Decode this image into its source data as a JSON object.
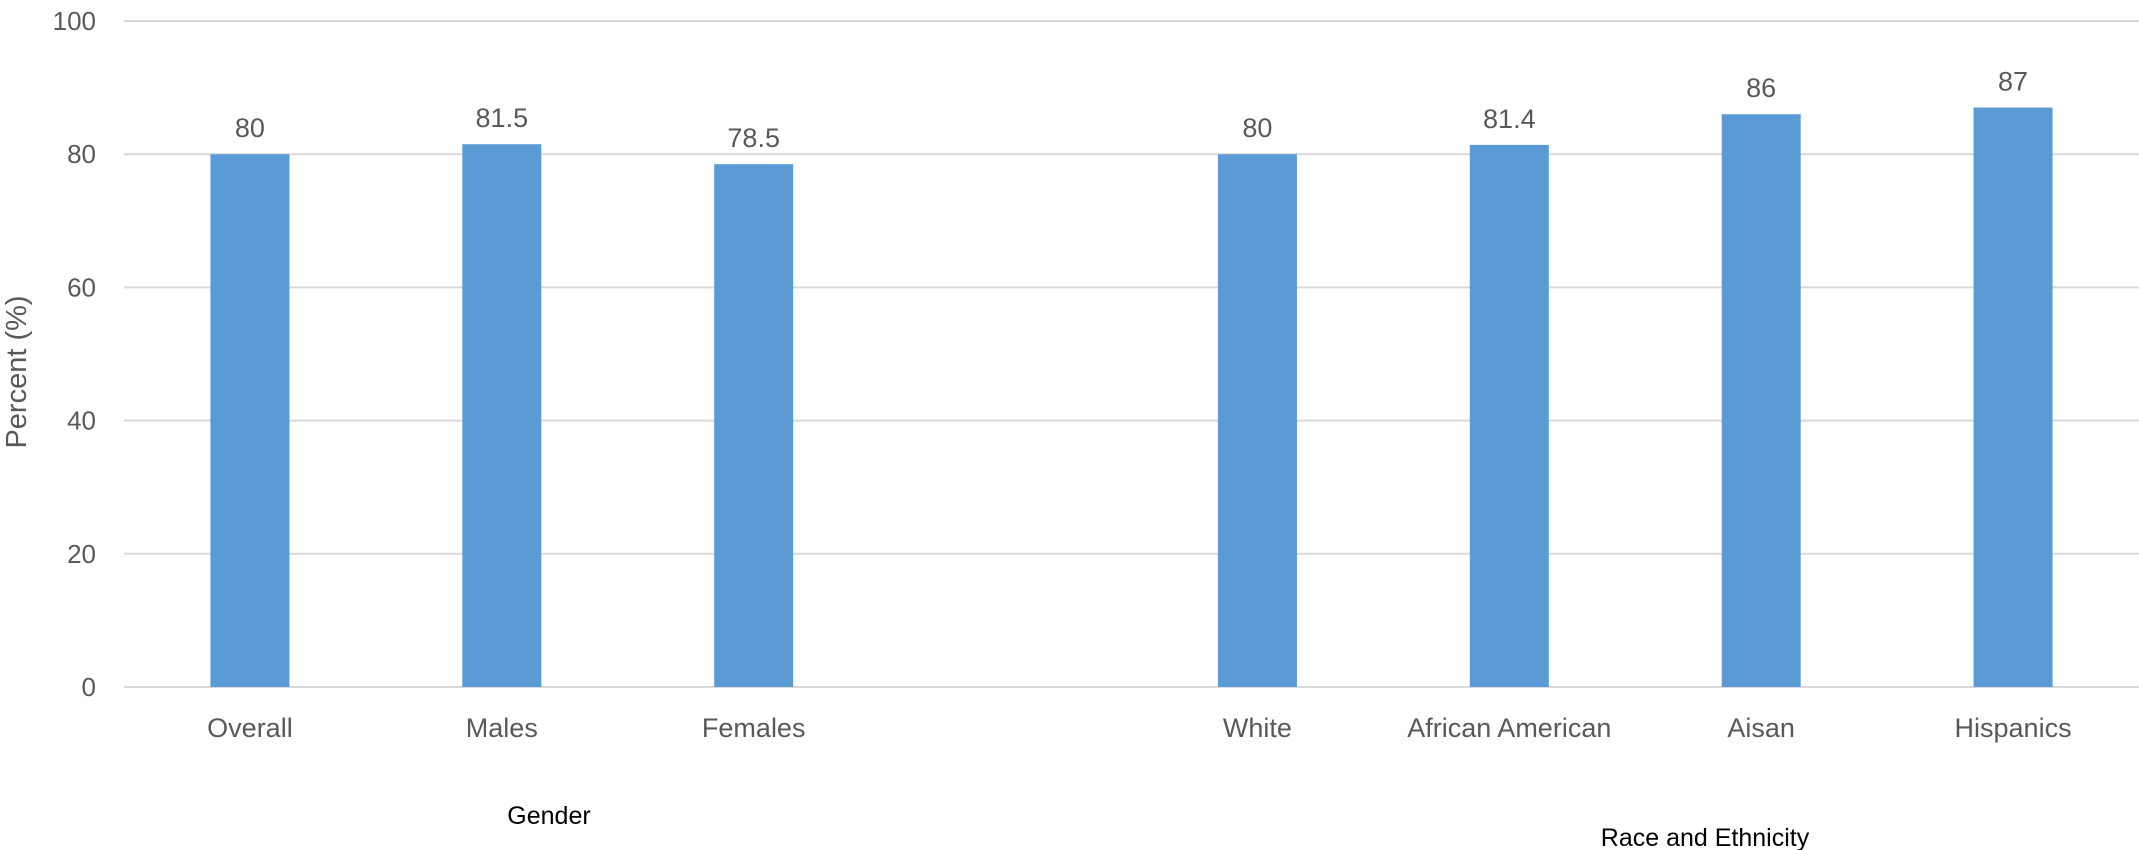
{
  "chart_data": {
    "type": "bar",
    "categories": [
      "Overall",
      "Males",
      "Females",
      "",
      "White",
      "African American",
      "Aisan",
      "Hispanics"
    ],
    "values": [
      80,
      81.5,
      78.5,
      null,
      80,
      81.4,
      86,
      87
    ],
    "data_labels": [
      "80",
      "81.5",
      "78.5",
      "",
      "80",
      "81.4",
      "86",
      "87"
    ],
    "groups": [
      {
        "label": "Gender"
      },
      {
        "label": "Race and Ethnicity"
      }
    ],
    "title": "",
    "xlabel": "",
    "ylabel": "Percent (%)",
    "ylim": [
      0,
      100
    ],
    "yticks": [
      0,
      20,
      40,
      60,
      80,
      100
    ],
    "grid": true,
    "bar_color": "#5B9BD5",
    "grid_color": "#D9D9D9",
    "text_color": "#595959"
  }
}
